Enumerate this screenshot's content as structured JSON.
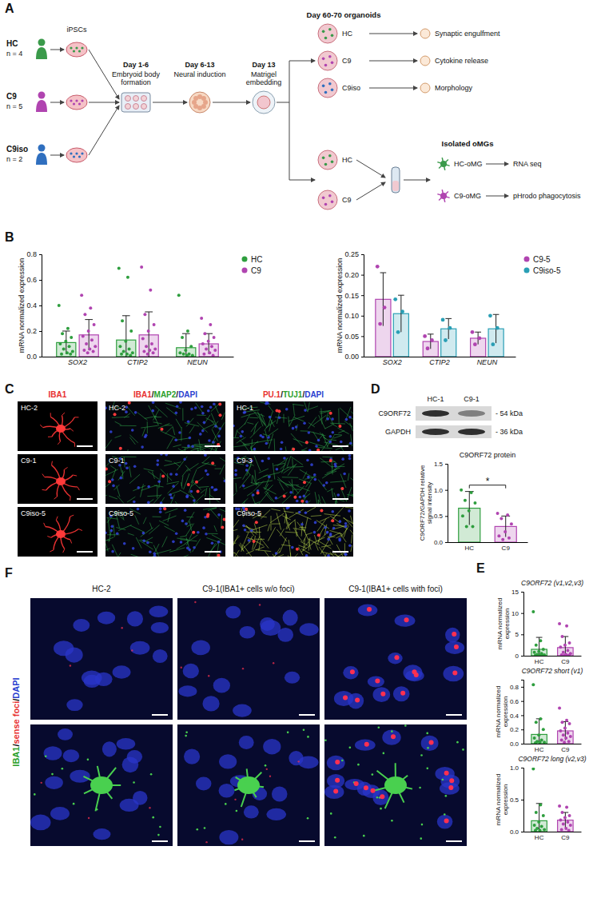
{
  "panel_letters": [
    "A",
    "B",
    "C",
    "D",
    "E",
    "F"
  ],
  "diagram": {
    "groups": [
      {
        "label": "HC",
        "n": "n = 4"
      },
      {
        "label": "C9",
        "n": "n = 5"
      },
      {
        "label": "C9iso",
        "n": "n = 2"
      }
    ],
    "cells": "iPSCs",
    "steps": [
      {
        "day": "Day 1-6",
        "label": "Embryoid body formation"
      },
      {
        "day": "Day 6-13",
        "label": "Neural induction"
      },
      {
        "day": "Day 13",
        "label": "Matrigel embedding"
      }
    ],
    "organoids": {
      "title": "Day 60-70 organoids",
      "lines": [
        "HC",
        "C9",
        "C9iso"
      ],
      "assays": [
        "Synaptic engulfment",
        "Cytokine release",
        "Morphology"
      ]
    },
    "isolation": {
      "lines": [
        "HC",
        "C9"
      ],
      "title": "Isolated oMGs",
      "cells": [
        "HC-oMG",
        "C9-oMG"
      ],
      "assays": [
        "RNA seq",
        "pHrodo phagocytosis"
      ]
    }
  },
  "images_c": {
    "columns": [
      {
        "stain": "IBA1",
        "colors": [
          "#e8312f"
        ],
        "rows": [
          "HC-2",
          "C9-1",
          "C9iso-5"
        ]
      },
      {
        "stain": "IBA1/MAP2/DAPI",
        "colors": [
          "#e8312f",
          "#2ca02c",
          "#2b3fd0"
        ],
        "rows": [
          "HC-2",
          "C9-1",
          "C9iso-5"
        ]
      },
      {
        "stain": "PU.1/TUJ1/DAPI",
        "colors": [
          "#e8312f",
          "#2ca02c",
          "#2b3fd0"
        ],
        "rows": [
          "HC-1",
          "C9-3",
          "C9iso-5"
        ]
      }
    ]
  },
  "blot": {
    "lanes": [
      "HC-1",
      "C9-1"
    ],
    "bands": [
      {
        "name": "C9ORF72",
        "size": "- 54 kDa"
      },
      {
        "name": "GAPDH",
        "size": "- 36 kDa"
      }
    ]
  },
  "images_f": {
    "columns": [
      "HC-2",
      "C9-1(IBA1+ cells w/o foci)",
      "C9-1(IBA1+ cells with foci)"
    ],
    "row_label": "IBA1/sense foci/DAPI",
    "row_label_colors": [
      "#2ca02c",
      "#e8312f",
      "#2b3fd0"
    ]
  },
  "chart_data": [
    {
      "type": "bar",
      "categories": [
        "SOX2",
        "CTIP2",
        "NEUN"
      ],
      "ylabel": "mRNA normalized expression",
      "ylim": [
        0,
        0.8
      ],
      "yticks": [
        {
          "value": 0,
          "label": "0.0"
        },
        0.2,
        0.4,
        0.6,
        0.8
      ],
      "legend": "right",
      "series": [
        {
          "name": "HC",
          "color": "#2e9e3e",
          "values": [
            0.11,
            0.13,
            0.07
          ],
          "errors": [
            0.09,
            0.19,
            0.11
          ],
          "points": [
            [
              0.4,
              0.22,
              0.18,
              0.15,
              0.12,
              0.1,
              0.08,
              0.06,
              0.04,
              0.03,
              0.02,
              0.02
            ],
            [
              0.69,
              0.62,
              0.28,
              0.2,
              0.12,
              0.08,
              0.06,
              0.04,
              0.03,
              0.02,
              0.02,
              0.01
            ],
            [
              0.48,
              0.2,
              0.15,
              0.08,
              0.05,
              0.03,
              0.02,
              0.02,
              0.01,
              0.01
            ]
          ]
        },
        {
          "name": "C9",
          "color": "#b044b0",
          "values": [
            0.17,
            0.17,
            0.1
          ],
          "errors": [
            0.12,
            0.18,
            0.08
          ],
          "points": [
            [
              0.48,
              0.38,
              0.33,
              0.25,
              0.2,
              0.16,
              0.13,
              0.1,
              0.08,
              0.06,
              0.05,
              0.04,
              0.03
            ],
            [
              0.7,
              0.52,
              0.33,
              0.25,
              0.2,
              0.14,
              0.1,
              0.08,
              0.06,
              0.05,
              0.04,
              0.03,
              0.02
            ],
            [
              0.3,
              0.25,
              0.18,
              0.15,
              0.12,
              0.1,
              0.08,
              0.06,
              0.05,
              0.03,
              0.02,
              0.01
            ]
          ]
        }
      ]
    },
    {
      "type": "bar",
      "categories": [
        "SOX2",
        "CTIP2",
        "NEUN"
      ],
      "ylabel": "mRNA normalized expression",
      "ylim": [
        0,
        0.25
      ],
      "yticks": [
        {
          "value": 0,
          "label": "0.00"
        },
        0.05,
        {
          "value": 0.1,
          "label": "0.10"
        },
        0.15,
        {
          "value": 0.2,
          "label": "0.20"
        },
        0.25
      ],
      "legend": "right",
      "series": [
        {
          "name": "C9-5",
          "color": "#b044b0",
          "values": [
            0.14,
            0.037,
            0.045
          ],
          "errors": [
            0.065,
            0.018,
            0.015
          ],
          "points": [
            [
              0.22,
              0.12,
              0.08
            ],
            [
              0.05,
              0.04,
              0.02
            ],
            [
              0.06,
              0.045,
              0.03
            ]
          ]
        },
        {
          "name": "C9iso-5",
          "color": "#2a9fb5",
          "values": [
            0.105,
            0.068,
            0.068
          ],
          "errors": [
            0.045,
            0.025,
            0.035
          ],
          "points": [
            [
              0.14,
              0.11,
              0.06
            ],
            [
              0.09,
              0.07,
              0.04
            ],
            [
              0.1,
              0.07,
              0.03
            ]
          ]
        }
      ]
    },
    {
      "type": "bar",
      "title": "C9ORF72 protein",
      "categories": [
        "HC",
        "C9"
      ],
      "ylabel": "C9ORF72/GAPDH relative signal intensity",
      "ylim": [
        0,
        1.5
      ],
      "yticks": [
        {
          "value": 0,
          "label": "0.0"
        },
        0.5,
        {
          "value": 1,
          "label": "1.0"
        },
        1.5
      ],
      "annotations": [
        "*"
      ],
      "series": [
        {
          "colors": [
            "#2e9e3e",
            "#b044b0"
          ],
          "values": [
            0.65,
            0.3
          ],
          "errors": [
            0.32,
            0.2
          ],
          "points": [
            [
              1.0,
              0.95,
              0.8,
              0.75,
              0.6,
              0.5,
              0.3,
              0.3
            ],
            [
              0.55,
              0.52,
              0.45,
              0.35,
              0.2,
              0.12,
              0.08,
              0.05
            ]
          ]
        }
      ]
    },
    {
      "type": "bar",
      "title": "C9ORF72 (v1,v2,v3)",
      "categories": [
        "HC",
        "C9"
      ],
      "ylabel": "mRNA normalized expression",
      "ylim": [
        0,
        15
      ],
      "yticks": [
        0,
        5,
        10,
        15
      ],
      "series": [
        {
          "colors": [
            "#2e9e3e",
            "#b044b0"
          ],
          "values": [
            1.5,
            1.9
          ],
          "errors": [
            2.8,
            2.6
          ],
          "points": [
            [
              10.3,
              3.5,
              2.5,
              1.5,
              1,
              0.8,
              0.5,
              0.3,
              0.2,
              0.1,
              0.1,
              0.05
            ],
            [
              7.5,
              7.0,
              4.5,
              3.0,
              2.5,
              2.0,
              1.2,
              0.8,
              0.5,
              0.3,
              0.2,
              0.1,
              0.1
            ]
          ]
        }
      ]
    },
    {
      "type": "bar",
      "title": "C9ORF72 short (v1)",
      "categories": [
        "HC",
        "C9"
      ],
      "ylabel": "mRNA normalized expression",
      "ylim": [
        0,
        0.9
      ],
      "yticks": [
        {
          "value": 0,
          "label": "0.0"
        },
        0.2,
        0.4,
        0.6,
        0.8
      ],
      "series": [
        {
          "colors": [
            "#2e9e3e",
            "#b044b0"
          ],
          "values": [
            0.13,
            0.18
          ],
          "errors": [
            0.22,
            0.13
          ],
          "points": [
            [
              0.83,
              0.35,
              0.3,
              0.2,
              0.12,
              0.08,
              0.05,
              0.03,
              0.02,
              0.02,
              0.01
            ],
            [
              0.5,
              0.33,
              0.3,
              0.28,
              0.22,
              0.18,
              0.15,
              0.12,
              0.1,
              0.08,
              0.05,
              0.03,
              0.02
            ]
          ]
        }
      ]
    },
    {
      "type": "bar",
      "title": "C9ORF72 long (v2,v3)",
      "categories": [
        "HC",
        "C9"
      ],
      "ylabel": "mRNA normalized expression",
      "ylim": [
        0,
        1
      ],
      "yticks": [
        {
          "value": 0,
          "label": "0.0"
        },
        0.5,
        {
          "value": 1,
          "label": "1.0"
        }
      ],
      "series": [
        {
          "colors": [
            "#2e9e3e",
            "#b044b0"
          ],
          "values": [
            0.17,
            0.18
          ],
          "errors": [
            0.27,
            0.12
          ],
          "points": [
            [
              0.98,
              0.42,
              0.3,
              0.25,
              0.15,
              0.1,
              0.08,
              0.05,
              0.03,
              0.02,
              0.02
            ],
            [
              0.4,
              0.38,
              0.3,
              0.25,
              0.22,
              0.18,
              0.15,
              0.12,
              0.1,
              0.05,
              0.03,
              0.02
            ]
          ]
        }
      ]
    }
  ]
}
